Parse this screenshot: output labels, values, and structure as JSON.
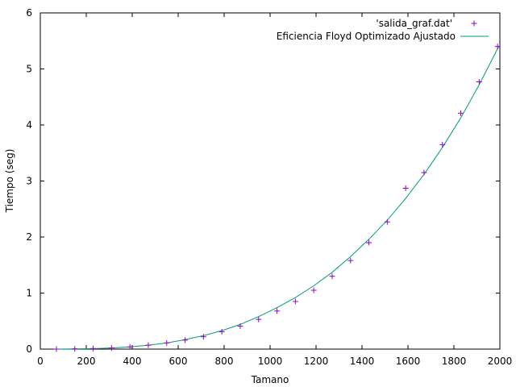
{
  "chart_data": {
    "type": "scatter",
    "title": "",
    "xlabel": "Tamano",
    "ylabel": "Tiempo (seg)",
    "xlim": [
      0,
      2000
    ],
    "ylim": [
      0,
      6
    ],
    "xticks": [
      0,
      200,
      400,
      600,
      800,
      1000,
      1200,
      1400,
      1600,
      1800,
      2000
    ],
    "yticks": [
      0,
      1,
      2,
      3,
      4,
      5,
      6
    ],
    "grid": false,
    "legend_position": "top-right",
    "series": [
      {
        "name": "'salida_graf.dat'",
        "kind": "points",
        "marker": "plus",
        "color": "#9400d3",
        "x": [
          70,
          150,
          230,
          310,
          390,
          470,
          550,
          630,
          710,
          790,
          870,
          950,
          1030,
          1110,
          1190,
          1270,
          1350,
          1430,
          1510,
          1590,
          1670,
          1750,
          1830,
          1910,
          1990
        ],
        "y": [
          0.0,
          0.005,
          0.01,
          0.02,
          0.04,
          0.07,
          0.11,
          0.16,
          0.22,
          0.31,
          0.41,
          0.53,
          0.68,
          0.85,
          1.05,
          1.3,
          1.58,
          1.9,
          2.27,
          2.87,
          3.15,
          3.65,
          4.21,
          4.77,
          5.4
        ]
      },
      {
        "name": "Eficiencia Floyd Optimizado Ajustado",
        "kind": "line",
        "color": "#009e73",
        "x": [
          70,
          150,
          230,
          310,
          390,
          470,
          550,
          630,
          710,
          790,
          870,
          950,
          1030,
          1110,
          1190,
          1270,
          1350,
          1430,
          1510,
          1590,
          1670,
          1750,
          1830,
          1910,
          1990,
          2000
        ],
        "y": [
          0.0,
          0.003,
          0.008,
          0.02,
          0.04,
          0.07,
          0.11,
          0.17,
          0.24,
          0.33,
          0.44,
          0.58,
          0.74,
          0.92,
          1.13,
          1.37,
          1.65,
          1.96,
          2.3,
          2.69,
          3.12,
          3.6,
          4.13,
          4.72,
          5.36,
          5.43
        ]
      }
    ]
  }
}
